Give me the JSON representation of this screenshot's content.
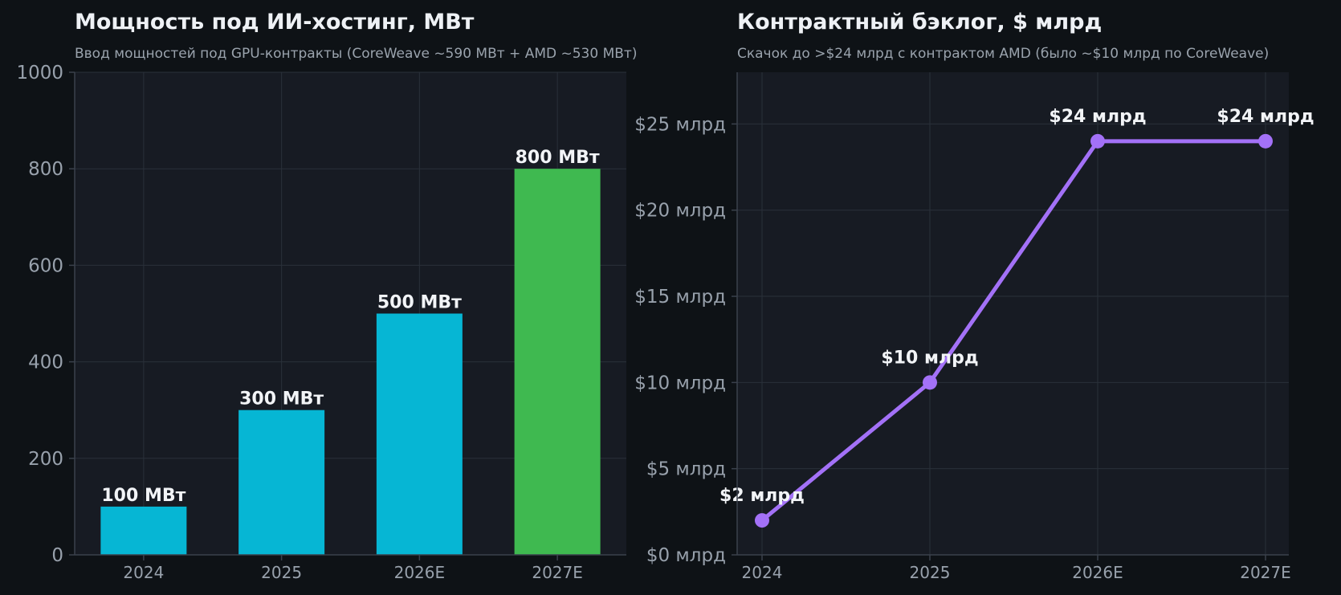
{
  "chart_data": [
    {
      "type": "bar",
      "title": "Мощность под ИИ-хостинг, МВт",
      "subtitle": "Ввод мощностей под GPU-контракты (CoreWeave ~590 МВт + AMD ~530 МВт)",
      "categories": [
        "2024",
        "2025",
        "2026E",
        "2027E"
      ],
      "values": [
        100,
        300,
        500,
        800
      ],
      "data_labels": [
        "100 МВт",
        "300 МВт",
        "500 МВт",
        "800 МВт"
      ],
      "colors": [
        "#06b6d4",
        "#06b6d4",
        "#06b6d4",
        "#3fb950"
      ],
      "ylim": [
        0,
        1000
      ],
      "yticks": [
        0,
        200,
        400,
        600,
        800,
        1000
      ],
      "ytick_labels": [
        "0",
        "200",
        "400",
        "600",
        "800",
        "1000"
      ],
      "xlabel": "",
      "ylabel": "",
      "grid": true
    },
    {
      "type": "line",
      "title": "Контрактный бэклог, $ млрд",
      "subtitle": "Скачок до >$24 млрд с контрактом AMD (было ~$10 млрд по CoreWeave)",
      "categories": [
        "2024",
        "2025",
        "2026E",
        "2027E"
      ],
      "values": [
        2,
        10,
        24,
        24
      ],
      "data_labels": [
        "$2 млрд",
        "$10 млрд",
        "$24 млрд",
        "$24 млрд"
      ],
      "color": "#a371f7",
      "ylim": [
        0,
        28
      ],
      "yticks": [
        0,
        5,
        10,
        15,
        20,
        25
      ],
      "ytick_labels": [
        "$0 млрд",
        "$5 млрд",
        "$10 млрд",
        "$15 млрд",
        "$20 млрд",
        "$25 млрд"
      ],
      "xlabel": "",
      "ylabel": "",
      "grid": true
    }
  ]
}
